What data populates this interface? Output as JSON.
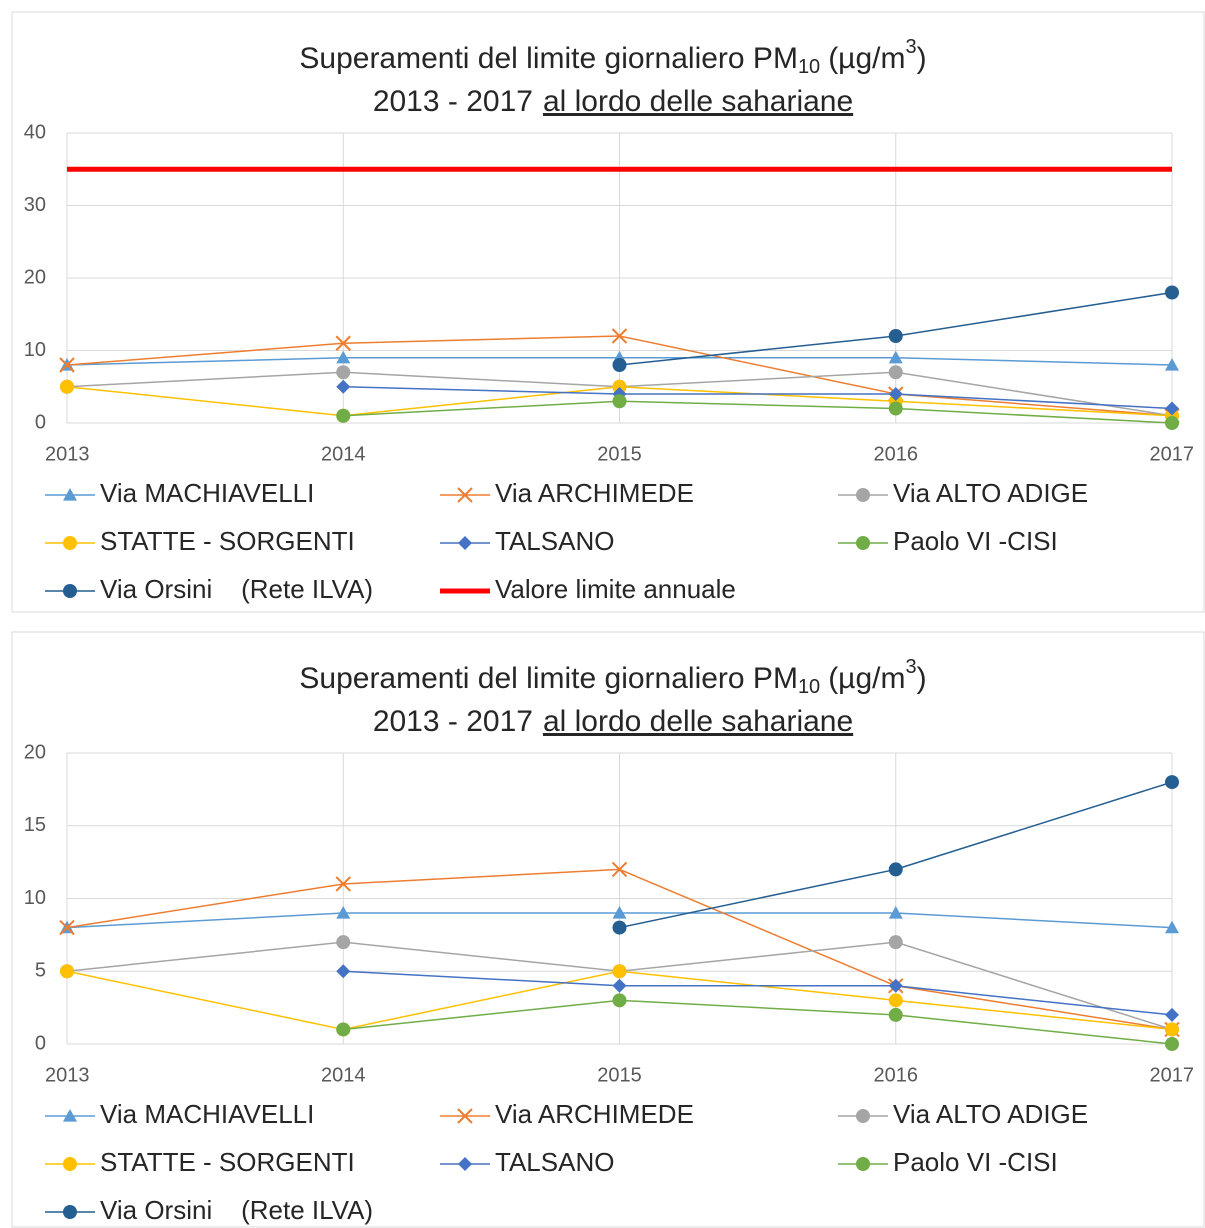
{
  "chart_data": [
    {
      "type": "line",
      "title": [
        "Superamenti del limite giornaliero PM",
        "10",
        "(µg/m",
        "3",
        ")"
      ],
      "subtitle": [
        "2013 - 2017",
        "al lordo delle sahariane"
      ],
      "x": [
        2013,
        2014,
        2015,
        2016,
        2017
      ],
      "xlim": [
        2013,
        2017
      ],
      "xticks": [
        2013,
        2014,
        2015,
        2016,
        2017
      ],
      "ylim": [
        0,
        40
      ],
      "yticks": [
        0,
        10,
        20,
        30,
        40
      ],
      "grid": true,
      "series": [
        {
          "name": "Via MACHIAVELLI",
          "color": "#5b9bd5",
          "marker": "triangle",
          "values": [
            8,
            9,
            9,
            9,
            8
          ]
        },
        {
          "name": "Via ARCHIMEDE",
          "color": "#ed7d31",
          "marker": "x",
          "values": [
            8,
            11,
            12,
            4,
            1
          ]
        },
        {
          "name": "Via ALTO ADIGE",
          "color": "#a5a5a5",
          "marker": "circle",
          "values": [
            5,
            7,
            5,
            7,
            1
          ]
        },
        {
          "name": "STATTE - SORGENTI",
          "color": "#ffc000",
          "marker": "circle",
          "values": [
            5,
            1,
            5,
            3,
            1
          ]
        },
        {
          "name": "TALSANO",
          "color": "#4472c4",
          "marker": "diamond",
          "values": [
            null,
            5,
            4,
            4,
            2
          ]
        },
        {
          "name": "Paolo VI -CISI",
          "color": "#70ad47",
          "marker": "circle",
          "values": [
            null,
            1,
            3,
            2,
            0
          ]
        },
        {
          "name": "Via Orsini    (Rete ILVA)",
          "color": "#255e91",
          "marker": "circle",
          "values": [
            null,
            null,
            8,
            12,
            18
          ]
        },
        {
          "name": "Valore limite annuale",
          "color": "#ff0000",
          "marker": "none",
          "values": [
            35,
            35,
            35,
            35,
            35
          ]
        }
      ]
    },
    {
      "type": "line",
      "title": [
        "Superamenti del limite giornaliero PM",
        "10",
        "(µg/m",
        "3",
        ")"
      ],
      "subtitle": [
        "2013 - 2017",
        "al lordo delle sahariane"
      ],
      "x": [
        2013,
        2014,
        2015,
        2016,
        2017
      ],
      "xlim": [
        2013,
        2017
      ],
      "xticks": [
        2013,
        2014,
        2015,
        2016,
        2017
      ],
      "ylim": [
        0,
        20
      ],
      "yticks": [
        0,
        5,
        10,
        15,
        20
      ],
      "grid": true,
      "series": [
        {
          "name": "Via MACHIAVELLI",
          "color": "#5b9bd5",
          "marker": "triangle",
          "values": [
            8,
            9,
            9,
            9,
            8
          ]
        },
        {
          "name": "Via ARCHIMEDE",
          "color": "#ed7d31",
          "marker": "x",
          "values": [
            8,
            11,
            12,
            4,
            1
          ]
        },
        {
          "name": "Via ALTO ADIGE",
          "color": "#a5a5a5",
          "marker": "circle",
          "values": [
            5,
            7,
            5,
            7,
            1
          ]
        },
        {
          "name": "STATTE - SORGENTI",
          "color": "#ffc000",
          "marker": "circle",
          "values": [
            5,
            1,
            5,
            3,
            1
          ]
        },
        {
          "name": "TALSANO",
          "color": "#4472c4",
          "marker": "diamond",
          "values": [
            null,
            5,
            4,
            4,
            2
          ]
        },
        {
          "name": "Paolo VI -CISI",
          "color": "#70ad47",
          "marker": "circle",
          "values": [
            null,
            1,
            3,
            2,
            0
          ]
        },
        {
          "name": "Via Orsini    (Rete ILVA)",
          "color": "#255e91",
          "marker": "circle",
          "values": [
            null,
            null,
            8,
            12,
            18
          ]
        }
      ]
    }
  ]
}
